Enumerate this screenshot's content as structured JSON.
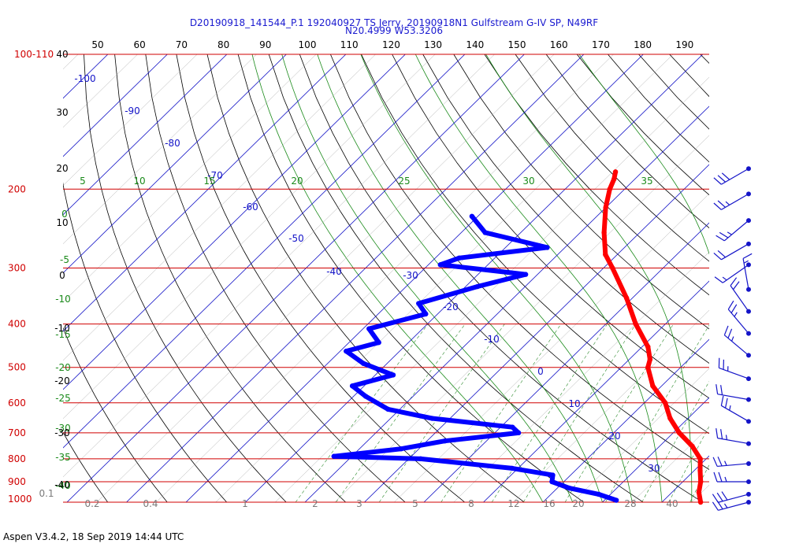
{
  "chart_data": {
    "type": "skew-t",
    "title_line1": "D20190918_141544_P.1 192040927 TS Jerry, 20190918N1 Gulfstream G-IV SP, N49RF",
    "title_line2": "N20.4999 W53.3206",
    "footer": "Aspen V3.4.2, 18 Sep 2019  14:44 UTC",
    "pressure_labels": [
      "100-110",
      "200",
      "300",
      "400",
      "500",
      "600",
      "700",
      "800",
      "900",
      "1000"
    ],
    "pressure_levels": [
      100,
      200,
      300,
      400,
      500,
      600,
      700,
      800,
      900,
      1000
    ],
    "fahrenheit_ticks": [
      "50",
      "60",
      "70",
      "80",
      "90",
      "100",
      "110",
      "120",
      "130",
      "140",
      "150",
      "160",
      "170",
      "180",
      "190"
    ],
    "isotherm_labels": [
      "-100",
      "-90",
      "-80",
      "-70",
      "-60",
      "-50",
      "-40",
      "-30",
      "-20",
      "-10",
      "0",
      "10",
      "20",
      "30"
    ],
    "isotherm_values": [
      -100,
      -90,
      -80,
      -70,
      -60,
      -50,
      -40,
      -30,
      -20,
      -10,
      0,
      10,
      20,
      30
    ],
    "dry_adiabat_labels": [
      "5",
      "10",
      "15",
      "20",
      "25",
      "30",
      "35"
    ],
    "moist_adiabat_labels": [
      "0",
      "-5",
      "-10",
      "-15",
      "-20",
      "-25",
      "-30",
      "-35",
      "-40"
    ],
    "height_labels": [
      "40",
      "30",
      "20",
      "10",
      "0",
      "-10",
      "-20",
      "-30",
      "-40"
    ],
    "mixing_ratio_labels": [
      "0.1",
      "0.2",
      "0.4",
      "1",
      "2",
      "3",
      "5",
      "8",
      "12",
      "16",
      "20",
      "28",
      "40"
    ],
    "temperature_color": "#ff0000",
    "dewpoint_color": "#0000ff",
    "temperature_profile": [
      {
        "p": 183,
        "t": -44.5
      },
      {
        "p": 190,
        "t": -43.5
      },
      {
        "p": 200,
        "t": -42.5
      },
      {
        "p": 220,
        "t": -40
      },
      {
        "p": 250,
        "t": -36
      },
      {
        "p": 280,
        "t": -32
      },
      {
        "p": 300,
        "t": -28.5
      },
      {
        "p": 350,
        "t": -21
      },
      {
        "p": 400,
        "t": -15
      },
      {
        "p": 450,
        "t": -9
      },
      {
        "p": 480,
        "t": -6.5
      },
      {
        "p": 500,
        "t": -5.5
      },
      {
        "p": 550,
        "t": -1.5
      },
      {
        "p": 600,
        "t": 3.5
      },
      {
        "p": 650,
        "t": 7
      },
      {
        "p": 700,
        "t": 11
      },
      {
        "p": 750,
        "t": 15.5
      },
      {
        "p": 800,
        "t": 19
      },
      {
        "p": 850,
        "t": 21
      },
      {
        "p": 900,
        "t": 23
      },
      {
        "p": 950,
        "t": 24.5
      },
      {
        "p": 1000,
        "t": 26.5
      }
    ],
    "dewpoint_profile": [
      {
        "p": 230,
        "t": -61
      },
      {
        "p": 250,
        "t": -56
      },
      {
        "p": 270,
        "t": -43
      },
      {
        "p": 285,
        "t": -56
      },
      {
        "p": 295,
        "t": -58
      },
      {
        "p": 310,
        "t": -42
      },
      {
        "p": 330,
        "t": -48
      },
      {
        "p": 360,
        "t": -55
      },
      {
        "p": 380,
        "t": -52
      },
      {
        "p": 410,
        "t": -59
      },
      {
        "p": 440,
        "t": -55
      },
      {
        "p": 460,
        "t": -59
      },
      {
        "p": 490,
        "t": -54
      },
      {
        "p": 520,
        "t": -47
      },
      {
        "p": 550,
        "t": -52
      },
      {
        "p": 580,
        "t": -48
      },
      {
        "p": 620,
        "t": -42
      },
      {
        "p": 650,
        "t": -33
      },
      {
        "p": 680,
        "t": -18
      },
      {
        "p": 700,
        "t": -16
      },
      {
        "p": 730,
        "t": -27
      },
      {
        "p": 760,
        "t": -33
      },
      {
        "p": 790,
        "t": -43
      },
      {
        "p": 800,
        "t": -28
      },
      {
        "p": 840,
        "t": -11
      },
      {
        "p": 870,
        "t": -3
      },
      {
        "p": 900,
        "t": -2
      },
      {
        "p": 930,
        "t": 2
      },
      {
        "p": 960,
        "t": 8
      },
      {
        "p": 990,
        "t": 12
      }
    ],
    "wind_barbs": [
      {
        "p": 180,
        "dir": 240,
        "kt": 30
      },
      {
        "p": 205,
        "dir": 240,
        "kt": 25
      },
      {
        "p": 235,
        "dir": 230,
        "kt": 25
      },
      {
        "p": 265,
        "dir": 240,
        "kt": 20
      },
      {
        "p": 295,
        "dir": 235,
        "kt": 15
      },
      {
        "p": 335,
        "dir": 350,
        "kt": 15
      },
      {
        "p": 375,
        "dir": 325,
        "kt": 20
      },
      {
        "p": 420,
        "dir": 320,
        "kt": 25
      },
      {
        "p": 470,
        "dir": 310,
        "kt": 25
      },
      {
        "p": 530,
        "dir": 290,
        "kt": 25
      },
      {
        "p": 590,
        "dir": 280,
        "kt": 20
      },
      {
        "p": 660,
        "dir": 300,
        "kt": 25
      },
      {
        "p": 740,
        "dir": 280,
        "kt": 25
      },
      {
        "p": 820,
        "dir": 265,
        "kt": 25
      },
      {
        "p": 900,
        "dir": 270,
        "kt": 25
      },
      {
        "p": 960,
        "dir": 255,
        "kt": 30
      },
      {
        "p": 1000,
        "dir": 255,
        "kt": 25
      }
    ]
  }
}
